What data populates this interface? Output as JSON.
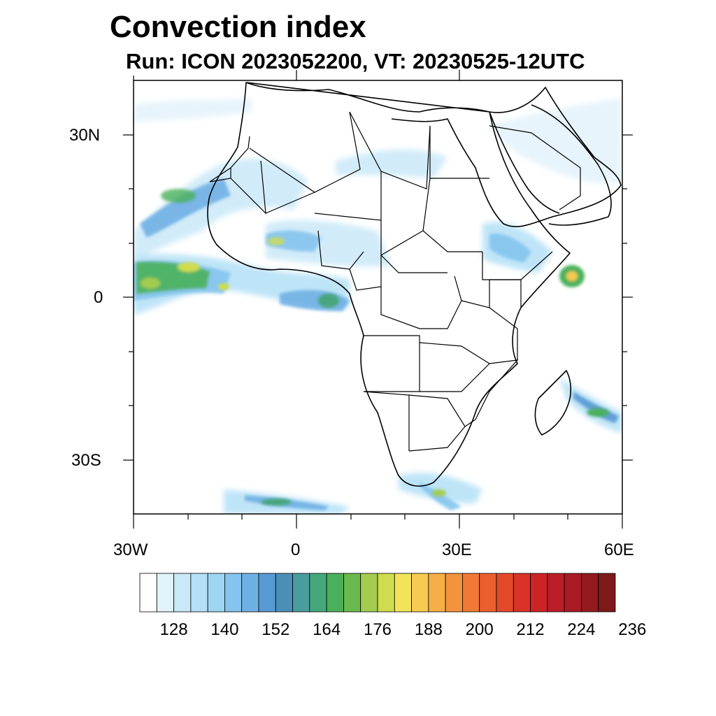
{
  "title": "Convection index",
  "subtitle": "Run: ICON 2023052200,  VT: 20230525-12UTC",
  "map": {
    "projection": "cylindrical equidistant",
    "lon_range": [
      -30,
      60
    ],
    "lat_range": [
      -40,
      40
    ],
    "field": "convection index",
    "lat_ticks": [
      "30N",
      "0",
      "30S"
    ],
    "lon_ticks": [
      "30W",
      "0",
      "30E",
      "60E"
    ],
    "regions_of_highest_values": [
      "tropical Atlantic near equator",
      "Gulf of Guinea",
      "Somali coast",
      "southeast of Madagascar",
      "southeastern South Africa"
    ]
  },
  "colorbar": {
    "labels": [
      "128",
      "140",
      "152",
      "164",
      "176",
      "188",
      "200",
      "212",
      "224",
      "236"
    ],
    "colors": [
      "#ffffff",
      "#e3f3fb",
      "#c9e8f8",
      "#b3e0f6",
      "#9dd5f3",
      "#84c4ee",
      "#6fb0e4",
      "#5799d3",
      "#4a8fb8",
      "#4a9d9c",
      "#47a67c",
      "#4bb05b",
      "#6ab94e",
      "#a3cc4f",
      "#cfdc4f",
      "#f1e45a",
      "#f7cb51",
      "#f6ae47",
      "#f4933e",
      "#f17935",
      "#ea5f2d",
      "#e34a2a",
      "#d93328",
      "#cc2327",
      "#bb1e27",
      "#a81b24",
      "#931a1f",
      "#7d1919"
    ]
  }
}
